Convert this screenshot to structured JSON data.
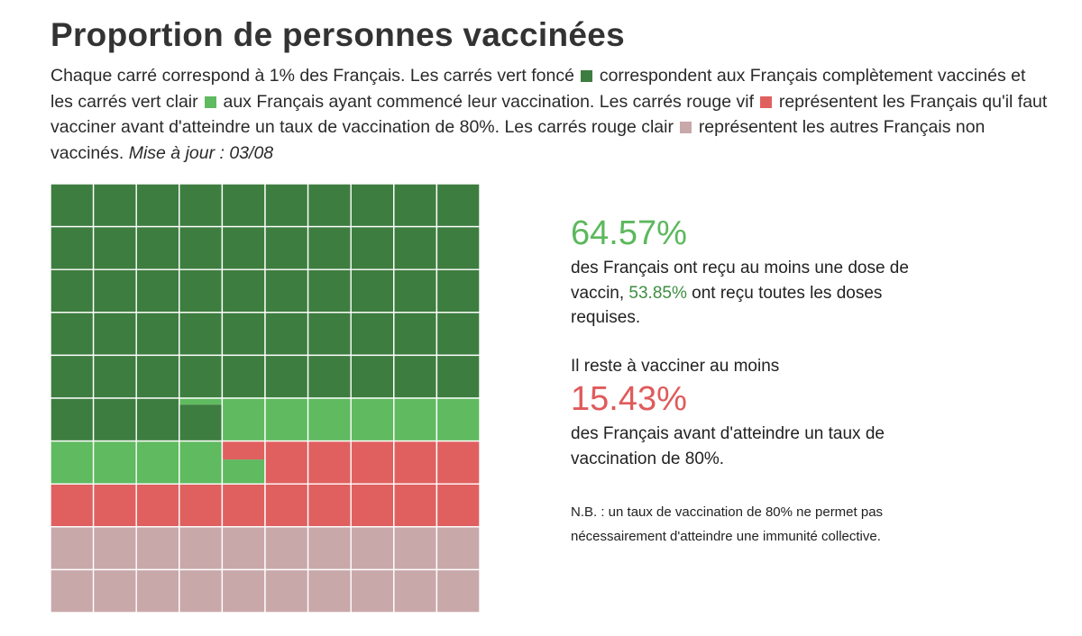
{
  "title": "Proportion de personnes vaccinées",
  "intro": {
    "part1": "Chaque carré correspond à 1% des Français. Les carrés vert foncé",
    "part2": "correspondent aux Français complètement vaccinés et les carrés vert clair",
    "part3": "aux Français ayant commencé leur vaccination. Les carrés rouge vif",
    "part4": "représentent les Français qu'il faut vacciner avant d'atteindre un taux de vaccination de 80%. Les carrés rouge clair",
    "part5": "représentent les autres Français non vaccinés.",
    "updated": "Mise à jour : 03/08"
  },
  "stats": {
    "at_least_one_dose": "64.57%",
    "at_least_one_text": "des Français ont reçu au moins une dose de vaccin,",
    "fully_vaccinated": "53.85%",
    "fully_text": "ont reçu toutes les doses requises.",
    "remaining_intro": "Il reste à vacciner au moins",
    "remaining": "15.43%",
    "remaining_text": "des Français avant d'atteindre un taux de vaccination de 80%.",
    "nb": "N.B. : un taux de vaccination de 80% ne permet pas nécessairement d'atteindre une immunité collective."
  },
  "colors": {
    "dark_green": "#3e7d40",
    "light_green": "#5fba60",
    "bright_red": "#e06060",
    "light_red": "#c9a8aa",
    "big_green_text": "#5cb85c",
    "small_green_text": "#3e8e41",
    "red_text": "#e05a5a"
  },
  "chart_data": {
    "type": "waffle",
    "grid": [
      10,
      10
    ],
    "unit": "1% des Français par carré",
    "categories": [
      "Complètement vaccinés",
      "Ayant commencé leur vaccination",
      "À vacciner avant 80%",
      "Autres non vaccinés"
    ],
    "values": [
      53.85,
      10.72,
      15.43,
      20.0
    ]
  }
}
